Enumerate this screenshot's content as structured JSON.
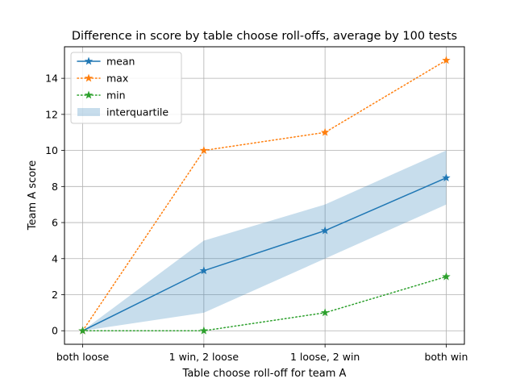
{
  "chart_data": {
    "type": "line",
    "title": "Difference in score by table choose roll-offs, average by 100 tests",
    "xlabel": "Table choose roll-off for team A",
    "ylabel": "Team A score",
    "categories": [
      "both loose",
      "1 win, 2 loose",
      "1 loose, 2 win",
      "both win"
    ],
    "ylim": [
      -0.75,
      15.75
    ],
    "yticks": [
      0,
      2,
      4,
      6,
      8,
      10,
      12,
      14
    ],
    "grid": true,
    "legend_position": "top-left",
    "series": [
      {
        "name": "mean",
        "values": [
          0,
          3.33,
          5.55,
          8.48
        ],
        "color": "#1f77b4",
        "linestyle": "solid",
        "marker": "star"
      },
      {
        "name": "max",
        "values": [
          0,
          10,
          11,
          15
        ],
        "color": "#ff7f0e",
        "linestyle": "dotted",
        "marker": "star"
      },
      {
        "name": "min",
        "values": [
          0,
          0,
          1,
          3
        ],
        "color": "#2ca02c",
        "linestyle": "dotted",
        "marker": "star"
      }
    ],
    "band": {
      "name": "interquartile",
      "lower": [
        0,
        1,
        4,
        7
      ],
      "upper": [
        0,
        5,
        7,
        10
      ],
      "color": "#1f77b4",
      "opacity": 0.25
    }
  }
}
